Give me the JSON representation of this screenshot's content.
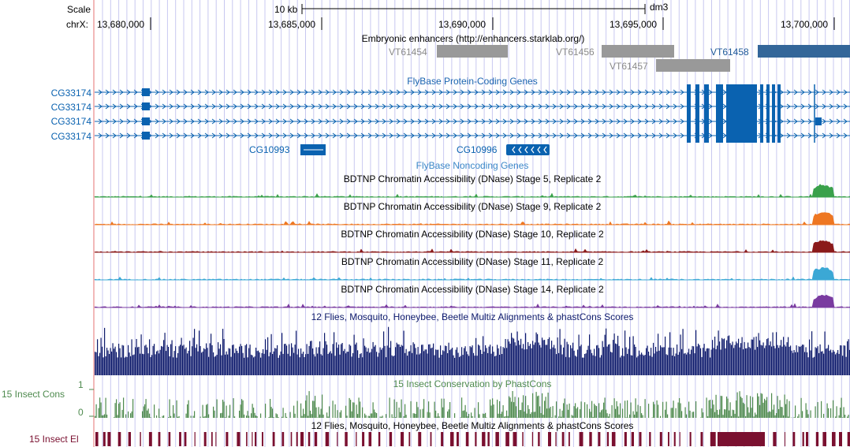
{
  "ruler": {
    "scale_label": "Scale",
    "scale_bar_text": "10 kb",
    "assembly": "dm3",
    "chrom_label": "chrX:",
    "positions": [
      "13,680,000",
      "13,685,000",
      "13,690,000",
      "13,695,000",
      "13,700,000"
    ]
  },
  "enhancers": {
    "title": "Embryonic enhancers (http://enhancers.starklab.org/)",
    "items": [
      {
        "name": "VT61454",
        "selected": false
      },
      {
        "name": "VT61456",
        "selected": false
      },
      {
        "name": "VT61457",
        "selected": false
      },
      {
        "name": "VT61458",
        "selected": true
      }
    ]
  },
  "protein_coding": {
    "title": "FlyBase Protein-Coding Genes",
    "genes": [
      "CG33174",
      "CG33174",
      "CG33174",
      "CG33174"
    ]
  },
  "noncoding": {
    "title": "FlyBase Noncoding Genes",
    "genes": [
      "CG10993",
      "CG10996"
    ]
  },
  "dnase_tracks": [
    {
      "title": "BDTNP Chromatin Accessibility (DNase) Stage 5, Replicate 2",
      "color": "#3aa14b"
    },
    {
      "title": "BDTNP Chromatin Accessibility (DNase) Stage 9, Replicate 2",
      "color": "#ee7722"
    },
    {
      "title": "BDTNP Chromatin Accessibility (DNase) Stage 10, Replicate 2",
      "color": "#8b1a1a"
    },
    {
      "title": "BDTNP Chromatin Accessibility (DNase) Stage 11, Replicate 2",
      "color": "#3ba8d5"
    },
    {
      "title": "BDTNP Chromatin Accessibility (DNase) Stage 14, Replicate 2",
      "color": "#7a3ba0"
    }
  ],
  "multiz": {
    "title": "12 Flies, Mosquito, Honeybee, Beetle Multiz Alignments & phastCons Scores",
    "color": "#0d1a6b"
  },
  "conservation": {
    "side_label": "15 Insect Cons",
    "title": "15 Insect Conservation by PhastCons",
    "axis_max": "1",
    "axis_min": "0",
    "color": "#4e8a4e"
  },
  "elements": {
    "side_label": "15 Insect El",
    "title": "12 Flies, Mosquito, Honeybee, Beetle Multiz Alignments & phastCons Scores",
    "color": "#7a1030"
  },
  "colors": {
    "gene_blue": "#0a62b0",
    "enhancer_grey": "#999999",
    "enhancer_selected": "#336699",
    "grid_line": "#c8c8f0",
    "highlight_line": "#f2b8b8"
  }
}
